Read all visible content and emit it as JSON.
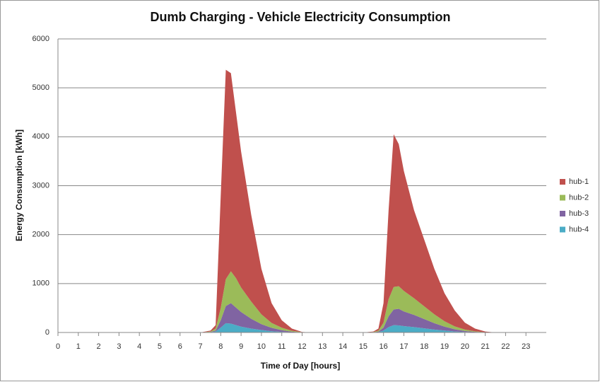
{
  "chart_data": {
    "type": "stacked-area",
    "title": "Dumb Charging - Vehicle Electricity Consumption",
    "x_label": "Time of Day [hours]",
    "y_label": "Energy Consumption [kWh]",
    "x": [
      0,
      7,
      7.5,
      7.75,
      8,
      8.25,
      8.5,
      8.75,
      9,
      9.5,
      10,
      10.5,
      11,
      11.5,
      12,
      12.5,
      15,
      15.5,
      15.75,
      16,
      16.25,
      16.5,
      16.75,
      17,
      17.5,
      18,
      18.5,
      19,
      19.5,
      20,
      20.5,
      21,
      21.5,
      24
    ],
    "series": [
      {
        "name": "hub-1",
        "color": "#c0504d",
        "values": [
          0,
          0,
          20,
          70,
          2300,
          4280,
          4050,
          3390,
          2780,
          1770,
          930,
          405,
          153,
          45,
          3,
          0,
          0,
          10,
          42,
          400,
          1820,
          3120,
          2905,
          2450,
          1800,
          1365,
          930,
          570,
          325,
          140,
          56,
          14,
          0,
          0
        ]
      },
      {
        "name": "hub-2",
        "color": "#9bbb59",
        "values": [
          0,
          0,
          10,
          40,
          250,
          550,
          650,
          600,
          500,
          350,
          200,
          100,
          50,
          18,
          3,
          0,
          0,
          5,
          20,
          100,
          350,
          460,
          460,
          420,
          340,
          260,
          180,
          110,
          60,
          30,
          12,
          3,
          0,
          0
        ]
      },
      {
        "name": "hub-3",
        "color": "#8064a2",
        "values": [
          0,
          0,
          5,
          20,
          150,
          350,
          420,
          360,
          300,
          200,
          120,
          70,
          35,
          12,
          3,
          0,
          0,
          3,
          10,
          60,
          220,
          320,
          340,
          300,
          250,
          190,
          130,
          80,
          45,
          20,
          8,
          2,
          0,
          0
        ]
      },
      {
        "name": "hub-4",
        "color": "#4bacc6",
        "values": [
          0,
          0,
          5,
          20,
          100,
          190,
          180,
          150,
          120,
          80,
          50,
          25,
          12,
          5,
          1,
          0,
          0,
          2,
          8,
          40,
          110,
          150,
          145,
          130,
          110,
          85,
          60,
          40,
          20,
          10,
          4,
          1,
          0,
          0
        ]
      }
    ],
    "xlim": [
      0,
      24
    ],
    "xticks": [
      0,
      1,
      2,
      3,
      4,
      5,
      6,
      7,
      8,
      9,
      10,
      11,
      12,
      13,
      14,
      15,
      16,
      17,
      18,
      19,
      20,
      21,
      22,
      23
    ],
    "ylim": [
      0,
      6000
    ],
    "yticks": [
      0,
      1000,
      2000,
      3000,
      4000,
      5000,
      6000
    ],
    "grid": true,
    "legend": "right"
  }
}
